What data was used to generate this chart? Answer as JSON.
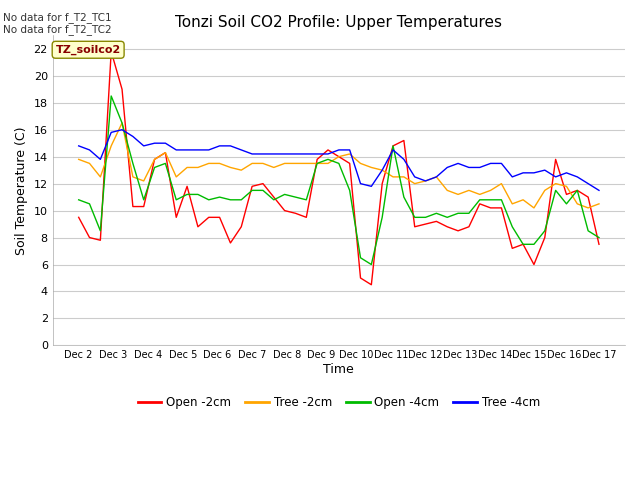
{
  "title": "Tonzi Soil CO2 Profile: Upper Temperatures",
  "ylabel": "Soil Temperature (C)",
  "xlabel": "Time",
  "top_left_text": "No data for f_T2_TC1\nNo data for f_T2_TC2",
  "watermark": "TZ_soilco2",
  "ylim": [
    0,
    23
  ],
  "yticks": [
    0,
    2,
    4,
    6,
    8,
    10,
    12,
    14,
    16,
    18,
    20,
    22
  ],
  "xtick_labels": [
    "Dec 2",
    "Dec 3",
    "Dec 4",
    "Dec 5",
    "Dec 6",
    "Dec 7",
    "Dec 8",
    "Dec 9",
    "Dec 10",
    "Dec 11",
    "Dec 12",
    "Dec 13",
    "Dec 14",
    "Dec 15",
    "Dec 16",
    "Dec 17"
  ],
  "legend_labels": [
    "Open -2cm",
    "Tree -2cm",
    "Open -4cm",
    "Tree -4cm"
  ],
  "legend_colors": [
    "#ff0000",
    "#ffa500",
    "#00bb00",
    "#0000ff"
  ],
  "series_colors": [
    "#ff0000",
    "#ffa500",
    "#00bb00",
    "#0000ff"
  ],
  "open_2cm": [
    9.5,
    8.0,
    7.8,
    21.8,
    19.0,
    10.3,
    10.3,
    13.8,
    14.3,
    9.5,
    11.8,
    8.8,
    9.5,
    9.5,
    7.6,
    8.8,
    11.8,
    12.0,
    11.0,
    10.0,
    9.8,
    9.5,
    13.8,
    14.5,
    14.0,
    13.5,
    5.0,
    4.5,
    12.0,
    14.8,
    15.2,
    8.8,
    9.0,
    9.2,
    8.8,
    8.5,
    8.8,
    10.5,
    10.2,
    10.2,
    7.2,
    7.5,
    6.0,
    8.0,
    13.8,
    11.2,
    11.5,
    11.0,
    7.5
  ],
  "tree_2cm": [
    13.8,
    13.5,
    12.5,
    14.8,
    16.5,
    12.5,
    12.2,
    13.8,
    14.3,
    12.5,
    13.2,
    13.2,
    13.5,
    13.5,
    13.2,
    13.0,
    13.5,
    13.5,
    13.2,
    13.5,
    13.5,
    13.5,
    13.5,
    13.5,
    14.0,
    14.2,
    13.5,
    13.2,
    13.0,
    12.5,
    12.5,
    12.0,
    12.2,
    12.5,
    11.5,
    11.2,
    11.5,
    11.2,
    11.5,
    12.0,
    10.5,
    10.8,
    10.2,
    11.5,
    12.0,
    11.8,
    10.5,
    10.2,
    10.5
  ],
  "open_4cm": [
    10.8,
    10.5,
    8.5,
    18.5,
    16.5,
    13.5,
    10.8,
    13.2,
    13.5,
    10.8,
    11.2,
    11.2,
    10.8,
    11.0,
    10.8,
    10.8,
    11.5,
    11.5,
    10.8,
    11.2,
    11.0,
    10.8,
    13.5,
    13.8,
    13.5,
    11.5,
    6.5,
    6.0,
    9.5,
    14.8,
    11.0,
    9.5,
    9.5,
    9.8,
    9.5,
    9.8,
    9.8,
    10.8,
    10.8,
    10.8,
    8.8,
    7.5,
    7.5,
    8.5,
    11.5,
    10.5,
    11.5,
    8.5,
    8.0
  ],
  "tree_4cm": [
    14.8,
    14.5,
    13.8,
    15.8,
    16.0,
    15.5,
    14.8,
    15.0,
    15.0,
    14.5,
    14.5,
    14.5,
    14.5,
    14.8,
    14.8,
    14.5,
    14.2,
    14.2,
    14.2,
    14.2,
    14.2,
    14.2,
    14.2,
    14.2,
    14.5,
    14.5,
    12.0,
    11.8,
    13.0,
    14.5,
    13.8,
    12.5,
    12.2,
    12.5,
    13.2,
    13.5,
    13.2,
    13.2,
    13.5,
    13.5,
    12.5,
    12.8,
    12.8,
    13.0,
    12.5,
    12.8,
    12.5,
    12.0,
    11.5
  ]
}
